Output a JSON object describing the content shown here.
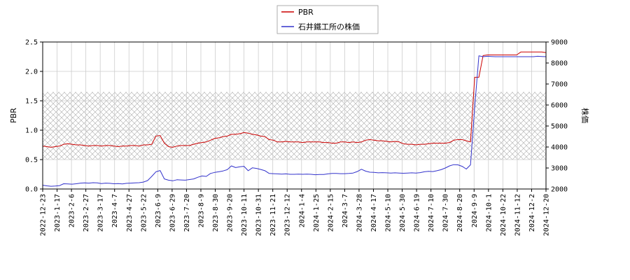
{
  "chart_data": {
    "type": "line",
    "x_ticks": [
      "2022-12-23",
      "2023-1-17",
      "2023-2-6",
      "2023-2-27",
      "2023-3-17",
      "2023-4-7",
      "2023-4-27",
      "2023-5-22",
      "2023-6-9",
      "2023-6-29",
      "2023-7-20",
      "2023-8-9",
      "2023-8-30",
      "2023-9-20",
      "2023-10-11",
      "2023-10-31",
      "2023-11-21",
      "2023-12-12",
      "2024-1-4",
      "2024-1-25",
      "2024-2-15",
      "2024-3-7",
      "2024-3-28",
      "2024-4-17",
      "2024-5-10",
      "2024-5-30",
      "2024-6-19",
      "2024-7-10",
      "2024-7-30",
      "2024-8-20",
      "2024-9-9",
      "2024-10-1",
      "2024-10-22",
      "2024-11-12",
      "2024-12-2",
      "2024-12-20"
    ],
    "y_left": {
      "label": "PBR",
      "range": [
        0,
        2.5
      ],
      "ticks": [
        "0.0",
        "0.5",
        "1.0",
        "1.5",
        "2.0",
        "2.5"
      ]
    },
    "y_right": {
      "label": "株価",
      "range": [
        2000,
        9000
      ],
      "ticks": [
        "2000",
        "3000",
        "4000",
        "5000",
        "6000",
        "7000",
        "8000",
        "9000"
      ]
    },
    "band": {
      "axis": "left",
      "range": [
        0.5,
        1.65
      ],
      "pattern": "crosshatch"
    },
    "grid": true,
    "legend": {
      "placement": "top-center"
    },
    "series": [
      {
        "name": "PBR",
        "axis": "left",
        "color": "#cc0000",
        "points": [
          [
            0,
            0.73
          ],
          [
            1,
            0.72
          ],
          [
            2,
            0.71
          ],
          [
            3,
            0.72
          ],
          [
            4,
            0.73
          ],
          [
            5,
            0.76
          ],
          [
            6,
            0.77
          ],
          [
            7,
            0.76
          ],
          [
            8,
            0.75
          ],
          [
            9,
            0.75
          ],
          [
            10,
            0.74
          ],
          [
            11,
            0.73
          ],
          [
            12,
            0.74
          ],
          [
            13,
            0.74
          ],
          [
            14,
            0.73
          ],
          [
            15,
            0.74
          ],
          [
            16,
            0.74
          ],
          [
            17,
            0.73
          ],
          [
            18,
            0.72
          ],
          [
            19,
            0.73
          ],
          [
            20,
            0.73
          ],
          [
            21,
            0.74
          ],
          [
            22,
            0.74
          ],
          [
            23,
            0.73
          ],
          [
            24,
            0.75
          ],
          [
            25,
            0.75
          ],
          [
            26,
            0.76
          ],
          [
            27,
            0.9
          ],
          [
            28,
            0.91
          ],
          [
            29,
            0.78
          ],
          [
            30,
            0.72
          ],
          [
            31,
            0.71
          ],
          [
            32,
            0.73
          ],
          [
            33,
            0.74
          ],
          [
            34,
            0.74
          ],
          [
            35,
            0.74
          ],
          [
            36,
            0.76
          ],
          [
            37,
            0.78
          ],
          [
            38,
            0.79
          ],
          [
            39,
            0.8
          ],
          [
            40,
            0.83
          ],
          [
            41,
            0.86
          ],
          [
            42,
            0.87
          ],
          [
            43,
            0.89
          ],
          [
            44,
            0.9
          ],
          [
            45,
            0.93
          ],
          [
            46,
            0.93
          ],
          [
            47,
            0.94
          ],
          [
            48,
            0.96
          ],
          [
            49,
            0.95
          ],
          [
            50,
            0.93
          ],
          [
            51,
            0.92
          ],
          [
            52,
            0.9
          ],
          [
            53,
            0.89
          ],
          [
            54,
            0.84
          ],
          [
            55,
            0.83
          ],
          [
            56,
            0.8
          ],
          [
            57,
            0.8
          ],
          [
            58,
            0.81
          ],
          [
            59,
            0.8
          ],
          [
            60,
            0.8
          ],
          [
            61,
            0.8
          ],
          [
            62,
            0.79
          ],
          [
            63,
            0.8
          ],
          [
            64,
            0.8
          ],
          [
            65,
            0.8
          ],
          [
            66,
            0.8
          ],
          [
            67,
            0.79
          ],
          [
            68,
            0.79
          ],
          [
            69,
            0.78
          ],
          [
            70,
            0.78
          ],
          [
            71,
            0.8
          ],
          [
            72,
            0.8
          ],
          [
            73,
            0.79
          ],
          [
            74,
            0.8
          ],
          [
            75,
            0.79
          ],
          [
            76,
            0.8
          ],
          [
            77,
            0.83
          ],
          [
            78,
            0.84
          ],
          [
            79,
            0.83
          ],
          [
            80,
            0.82
          ],
          [
            81,
            0.82
          ],
          [
            82,
            0.81
          ],
          [
            83,
            0.8
          ],
          [
            84,
            0.81
          ],
          [
            85,
            0.8
          ],
          [
            86,
            0.77
          ],
          [
            87,
            0.76
          ],
          [
            88,
            0.76
          ],
          [
            89,
            0.75
          ],
          [
            90,
            0.76
          ],
          [
            91,
            0.76
          ],
          [
            92,
            0.77
          ],
          [
            93,
            0.78
          ],
          [
            94,
            0.78
          ],
          [
            95,
            0.78
          ],
          [
            96,
            0.78
          ],
          [
            97,
            0.79
          ],
          [
            98,
            0.83
          ],
          [
            99,
            0.84
          ],
          [
            100,
            0.84
          ],
          [
            101,
            0.82
          ],
          [
            102,
            0.8
          ],
          [
            103,
            1.9
          ],
          [
            104,
            1.9
          ],
          [
            105,
            2.27
          ],
          [
            106,
            2.28
          ],
          [
            107,
            2.28
          ],
          [
            108,
            2.28
          ],
          [
            109,
            2.28
          ],
          [
            110,
            2.28
          ],
          [
            111,
            2.28
          ],
          [
            112,
            2.28
          ],
          [
            113,
            2.28
          ],
          [
            114,
            2.33
          ],
          [
            115,
            2.33
          ],
          [
            116,
            2.33
          ],
          [
            117,
            2.33
          ],
          [
            118,
            2.33
          ],
          [
            119,
            2.33
          ],
          [
            120,
            2.32
          ]
        ]
      },
      {
        "name": "石井鐵工所の株価",
        "axis": "right",
        "color": "#3333cc",
        "points": [
          [
            0,
            2180
          ],
          [
            1,
            2150
          ],
          [
            2,
            2130
          ],
          [
            3,
            2140
          ],
          [
            4,
            2160
          ],
          [
            5,
            2250
          ],
          [
            6,
            2240
          ],
          [
            7,
            2230
          ],
          [
            8,
            2250
          ],
          [
            9,
            2280
          ],
          [
            10,
            2290
          ],
          [
            11,
            2280
          ],
          [
            12,
            2300
          ],
          [
            13,
            2290
          ],
          [
            14,
            2260
          ],
          [
            15,
            2280
          ],
          [
            16,
            2270
          ],
          [
            17,
            2250
          ],
          [
            18,
            2260
          ],
          [
            19,
            2240
          ],
          [
            20,
            2270
          ],
          [
            21,
            2280
          ],
          [
            22,
            2290
          ],
          [
            23,
            2300
          ],
          [
            24,
            2330
          ],
          [
            25,
            2400
          ],
          [
            26,
            2600
          ],
          [
            27,
            2820
          ],
          [
            28,
            2880
          ],
          [
            29,
            2480
          ],
          [
            30,
            2420
          ],
          [
            31,
            2390
          ],
          [
            32,
            2440
          ],
          [
            33,
            2430
          ],
          [
            34,
            2420
          ],
          [
            35,
            2450
          ],
          [
            36,
            2480
          ],
          [
            37,
            2560
          ],
          [
            38,
            2620
          ],
          [
            39,
            2600
          ],
          [
            40,
            2740
          ],
          [
            41,
            2790
          ],
          [
            42,
            2820
          ],
          [
            43,
            2860
          ],
          [
            44,
            2920
          ],
          [
            45,
            3100
          ],
          [
            46,
            3020
          ],
          [
            47,
            3060
          ],
          [
            48,
            3080
          ],
          [
            49,
            2870
          ],
          [
            50,
            3010
          ],
          [
            51,
            2980
          ],
          [
            52,
            2930
          ],
          [
            53,
            2870
          ],
          [
            54,
            2740
          ],
          [
            55,
            2730
          ],
          [
            56,
            2720
          ],
          [
            57,
            2710
          ],
          [
            58,
            2720
          ],
          [
            59,
            2700
          ],
          [
            60,
            2700
          ],
          [
            61,
            2710
          ],
          [
            62,
            2700
          ],
          [
            63,
            2710
          ],
          [
            64,
            2700
          ],
          [
            65,
            2680
          ],
          [
            66,
            2690
          ],
          [
            67,
            2690
          ],
          [
            68,
            2720
          ],
          [
            69,
            2740
          ],
          [
            70,
            2740
          ],
          [
            71,
            2730
          ],
          [
            72,
            2730
          ],
          [
            73,
            2740
          ],
          [
            74,
            2760
          ],
          [
            75,
            2830
          ],
          [
            76,
            2940
          ],
          [
            77,
            2850
          ],
          [
            78,
            2800
          ],
          [
            79,
            2790
          ],
          [
            80,
            2770
          ],
          [
            81,
            2780
          ],
          [
            82,
            2770
          ],
          [
            83,
            2760
          ],
          [
            84,
            2770
          ],
          [
            85,
            2760
          ],
          [
            86,
            2750
          ],
          [
            87,
            2760
          ],
          [
            88,
            2770
          ],
          [
            89,
            2760
          ],
          [
            90,
            2780
          ],
          [
            91,
            2820
          ],
          [
            92,
            2840
          ],
          [
            93,
            2830
          ],
          [
            94,
            2870
          ],
          [
            95,
            2920
          ],
          [
            96,
            3000
          ],
          [
            97,
            3100
          ],
          [
            98,
            3160
          ],
          [
            99,
            3150
          ],
          [
            100,
            3080
          ],
          [
            101,
            2950
          ],
          [
            102,
            3150
          ],
          [
            103,
            5900
          ],
          [
            104,
            8340
          ],
          [
            105,
            8300
          ],
          [
            106,
            8320
          ],
          [
            107,
            8310
          ],
          [
            108,
            8300
          ],
          [
            109,
            8300
          ],
          [
            110,
            8300
          ],
          [
            111,
            8300
          ],
          [
            112,
            8300
          ],
          [
            113,
            8300
          ],
          [
            114,
            8300
          ],
          [
            115,
            8300
          ],
          [
            116,
            8300
          ],
          [
            117,
            8300
          ],
          [
            118,
            8320
          ],
          [
            119,
            8310
          ],
          [
            120,
            8300
          ]
        ]
      }
    ]
  }
}
